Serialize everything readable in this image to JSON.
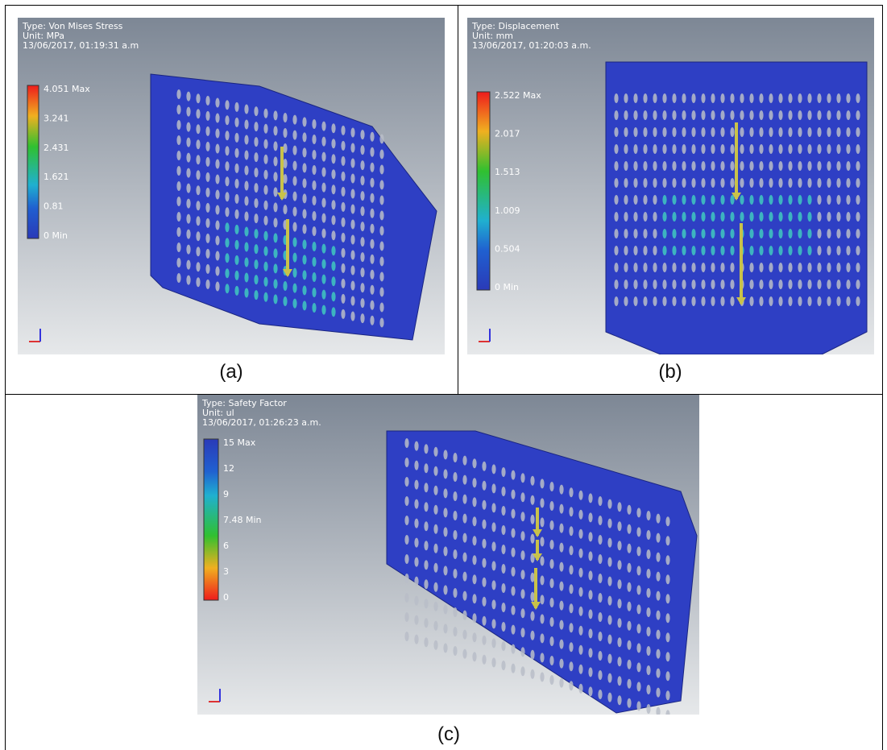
{
  "panels": [
    {
      "caption": "(a)",
      "type": "Type: Von Mises Stress",
      "unit": "Unit: MPa",
      "timestamp": "13/06/2017, 01:19:31 a.m",
      "legend": [
        "4.051 Max",
        "3.241",
        "2.431",
        "1.621",
        "0.81",
        "0 Min"
      ]
    },
    {
      "caption": "(b)",
      "type": "Type: Displacement",
      "unit": "Unit: mm",
      "timestamp": "13/06/2017, 01:20:03 a.m.",
      "legend": [
        "2.522 Max",
        "2.017",
        "1.513",
        "1.009",
        "0.504",
        "0 Min"
      ]
    },
    {
      "caption": "(c)",
      "type": "Type: Safety Factor",
      "unit": "Unit: ul",
      "timestamp": "13/06/2017, 01:26:23 a.m.",
      "legend": [
        "15 Max",
        "12",
        "9",
        "7.48 Min",
        "6",
        "3",
        "0"
      ]
    }
  ]
}
